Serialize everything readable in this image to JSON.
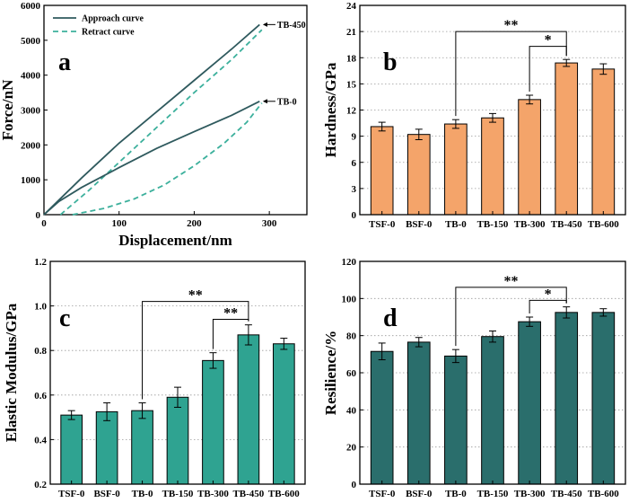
{
  "chart_data": [
    {
      "type": "line",
      "panel_label": "a",
      "title": "",
      "xlabel": "Displacement/nm",
      "ylabel": "Force/nN",
      "xlim": [
        0,
        350
      ],
      "ylim": [
        0,
        6000
      ],
      "xticks": [
        "0",
        "100",
        "200",
        "300"
      ],
      "yticks": [
        "0",
        "1000",
        "2000",
        "3000",
        "4000",
        "5000",
        "6000"
      ],
      "legend": [
        "Approach curve",
        "Retract curve"
      ],
      "legend_position": "top-left",
      "colors": {
        "approach": "#2f5a5e",
        "retract": "#3cb09c"
      },
      "series": [
        {
          "name": "Approach curve",
          "label": "TB-450",
          "x": [
            0,
            20,
            50,
            100,
            150,
            200,
            250,
            287
          ],
          "y": [
            0,
            420,
            1050,
            2050,
            2950,
            3850,
            4750,
            5450
          ]
        },
        {
          "name": "Retract curve",
          "label": "TB-450",
          "x": [
            22,
            60,
            100,
            150,
            200,
            250,
            290
          ],
          "y": [
            0,
            700,
            1500,
            2500,
            3500,
            4450,
            5300
          ]
        },
        {
          "name": "Approach curve",
          "label": "TB-0",
          "x": [
            0,
            20,
            50,
            100,
            150,
            200,
            250,
            287
          ],
          "y": [
            0,
            380,
            780,
            1350,
            1900,
            2380,
            2850,
            3250
          ]
        },
        {
          "name": "Retract curve",
          "label": "TB-0",
          "x": [
            38,
            80,
            120,
            160,
            200,
            240,
            270,
            290
          ],
          "y": [
            0,
            180,
            450,
            850,
            1400,
            2050,
            2650,
            3200
          ]
        }
      ],
      "annotations": [
        "TB-450",
        "TB-0"
      ]
    },
    {
      "type": "bar",
      "panel_label": "b",
      "ylabel": "Hardness/GPa",
      "xlabel": "",
      "bar_color": "#f4a46a",
      "categories": [
        "TSF-0",
        "BSF-0",
        "TB-0",
        "TB-150",
        "TB-300",
        "TB-450",
        "TB-600"
      ],
      "values": [
        10.1,
        9.2,
        10.4,
        11.1,
        13.2,
        17.4,
        16.7
      ],
      "errors": [
        0.5,
        0.6,
        0.5,
        0.5,
        0.5,
        0.4,
        0.6
      ],
      "ylim": [
        0,
        24
      ],
      "yticks": [
        "0",
        "3",
        "6",
        "9",
        "12",
        "15",
        "18",
        "21",
        "24"
      ],
      "grid": "horizontal dotted",
      "significance": [
        {
          "from": 2,
          "to": 5,
          "label": "**",
          "y": 21
        },
        {
          "from": 4,
          "to": 5,
          "label": "*",
          "y": 19.3
        }
      ]
    },
    {
      "type": "bar",
      "panel_label": "c",
      "ylabel": "Elastic Modulus/GPa",
      "xlabel": "",
      "bar_color": "#2fa391",
      "categories": [
        "TSF-0",
        "BSF-0",
        "TB-0",
        "TB-150",
        "TB-300",
        "TB-450",
        "TB-600"
      ],
      "values": [
        0.51,
        0.525,
        0.53,
        0.59,
        0.755,
        0.87,
        0.83
      ],
      "errors": [
        0.02,
        0.04,
        0.035,
        0.045,
        0.035,
        0.045,
        0.025
      ],
      "ylim": [
        0.2,
        1.2
      ],
      "yticks": [
        "0.2",
        "0.4",
        "0.6",
        "0.8",
        "1.0",
        "1.2"
      ],
      "grid": "horizontal dotted",
      "significance": [
        {
          "from": 2,
          "to": 5,
          "label": "**",
          "y": 1.02
        },
        {
          "from": 4,
          "to": 5,
          "label": "**",
          "y": 0.94
        }
      ]
    },
    {
      "type": "bar",
      "panel_label": "d",
      "ylabel": "Resilience/%",
      "xlabel": "",
      "bar_color": "#2a6e6c",
      "categories": [
        "TSF-0",
        "BSF-0",
        "TB-0",
        "TB-150",
        "TB-300",
        "TB-450",
        "TB-600"
      ],
      "values": [
        71.5,
        76.5,
        69,
        79.5,
        87.5,
        92.5,
        92.5
      ],
      "errors": [
        4.5,
        2.5,
        3.5,
        3.0,
        2.5,
        3.0,
        2.0
      ],
      "ylim": [
        0,
        120
      ],
      "yticks": [
        "0",
        "20",
        "40",
        "60",
        "80",
        "100",
        "120"
      ],
      "grid": "horizontal dotted",
      "significance": [
        {
          "from": 2,
          "to": 5,
          "label": "**",
          "y": 106
        },
        {
          "from": 4,
          "to": 5,
          "label": "*",
          "y": 99
        }
      ]
    }
  ]
}
